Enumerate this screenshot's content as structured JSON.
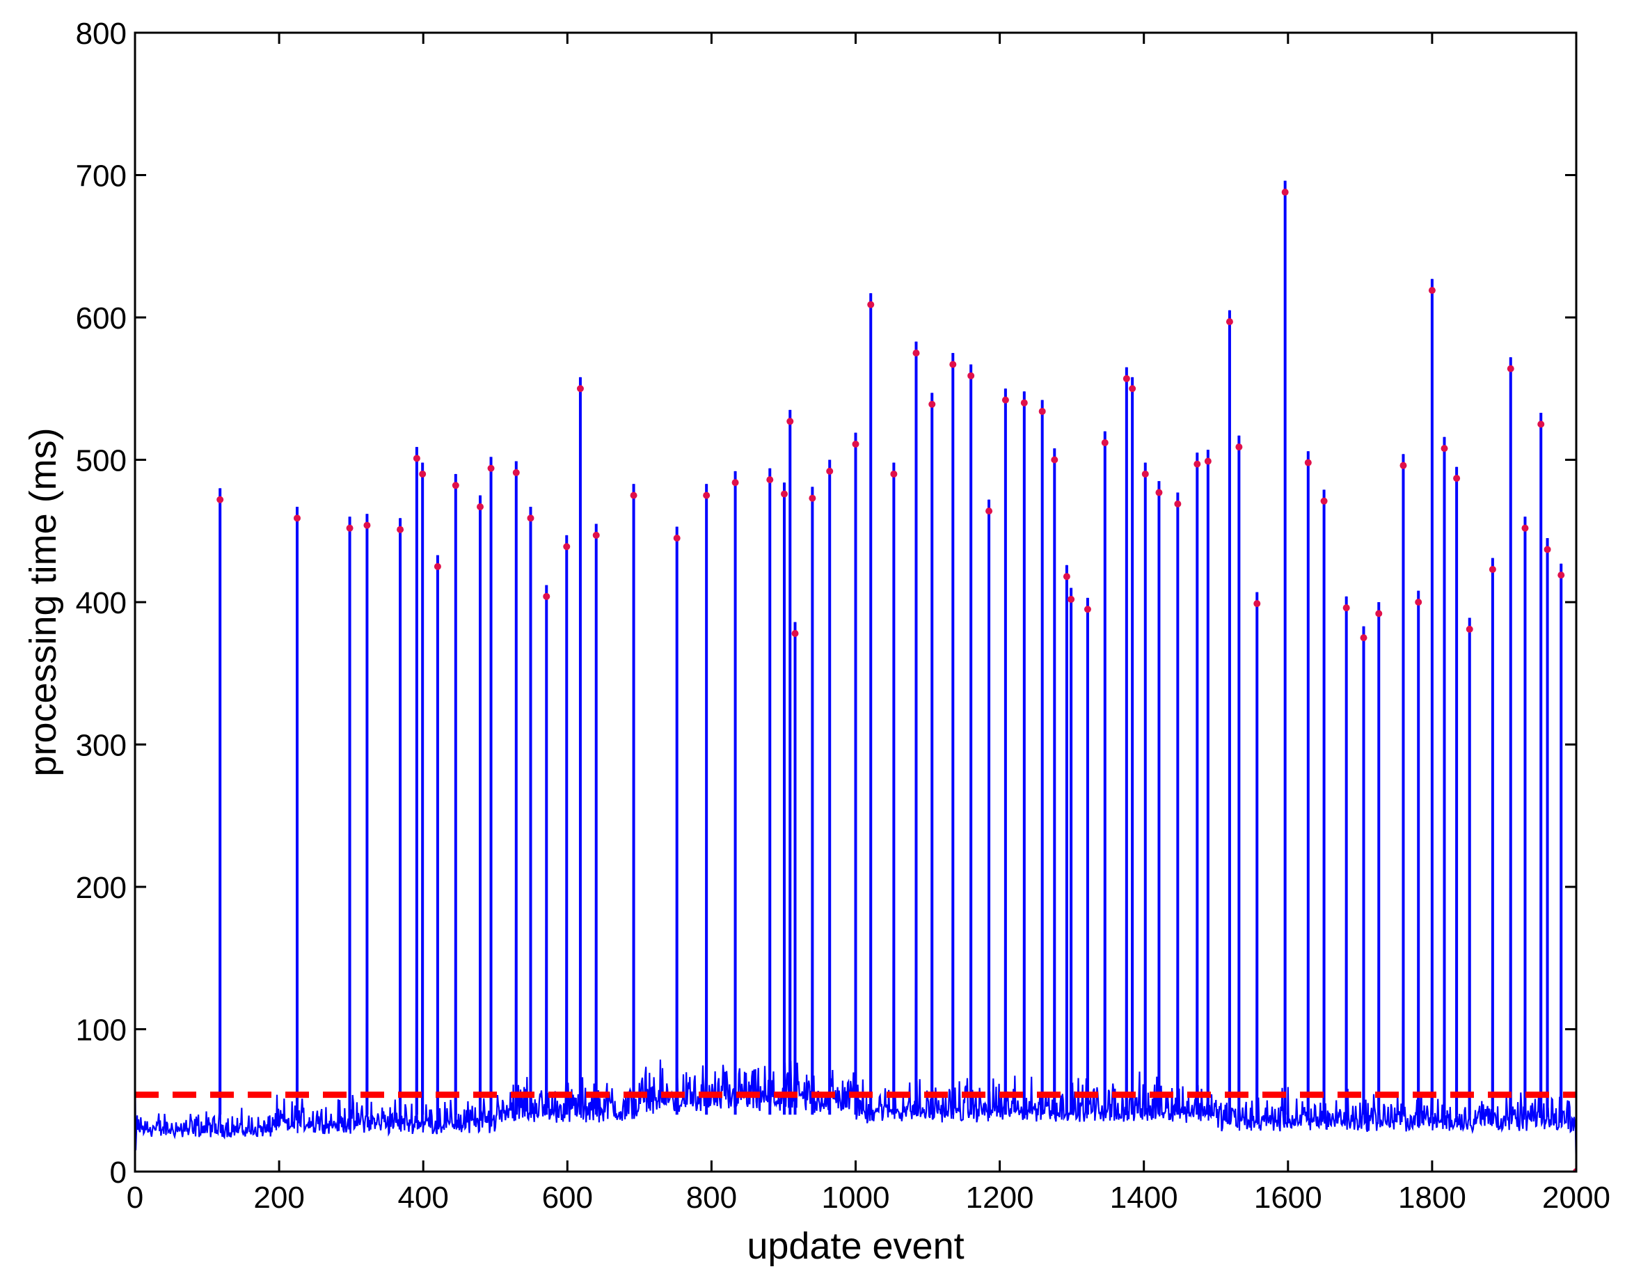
{
  "chart_data": {
    "type": "line",
    "title": "",
    "xlabel": "update event",
    "ylabel": "processing time (ms)",
    "xlim": [
      0,
      2000
    ],
    "ylim": [
      0,
      800
    ],
    "xticks": [
      0,
      200,
      400,
      600,
      800,
      1000,
      1200,
      1400,
      1600,
      1800,
      2000
    ],
    "yticks": [
      0,
      100,
      200,
      300,
      400,
      500,
      600,
      700,
      800
    ],
    "grid": false,
    "legend": "none",
    "series": [
      {
        "kind": "line",
        "color": "#0000ff",
        "description_of_baseline": "noisy processing-time trace between ~15 and ~80 ms",
        "baseline_segments": [
          {
            "x_start": 0,
            "x_end": 190,
            "min": 15,
            "max": 45
          },
          {
            "x_start": 190,
            "x_end": 500,
            "min": 15,
            "max": 55
          },
          {
            "x_start": 500,
            "x_end": 700,
            "min": 20,
            "max": 70
          },
          {
            "x_start": 700,
            "x_end": 1000,
            "min": 25,
            "max": 80
          },
          {
            "x_start": 1000,
            "x_end": 1500,
            "min": 20,
            "max": 70
          },
          {
            "x_start": 1500,
            "x_end": 2000,
            "min": 15,
            "max": 60
          }
        ],
        "spikes": [
          {
            "x": 118,
            "y": 472
          },
          {
            "x": 225,
            "y": 459
          },
          {
            "x": 298,
            "y": 452
          },
          {
            "x": 322,
            "y": 454
          },
          {
            "x": 368,
            "y": 451
          },
          {
            "x": 391,
            "y": 501
          },
          {
            "x": 399,
            "y": 490
          },
          {
            "x": 420,
            "y": 425
          },
          {
            "x": 445,
            "y": 482
          },
          {
            "x": 479,
            "y": 467
          },
          {
            "x": 494,
            "y": 494
          },
          {
            "x": 529,
            "y": 491
          },
          {
            "x": 549,
            "y": 459
          },
          {
            "x": 571,
            "y": 404
          },
          {
            "x": 599,
            "y": 439
          },
          {
            "x": 618,
            "y": 550
          },
          {
            "x": 640,
            "y": 447
          },
          {
            "x": 692,
            "y": 475
          },
          {
            "x": 752,
            "y": 445
          },
          {
            "x": 793,
            "y": 475
          },
          {
            "x": 833,
            "y": 484
          },
          {
            "x": 881,
            "y": 486
          },
          {
            "x": 901,
            "y": 476
          },
          {
            "x": 909,
            "y": 527
          },
          {
            "x": 916,
            "y": 378
          },
          {
            "x": 940,
            "y": 473
          },
          {
            "x": 964,
            "y": 492
          },
          {
            "x": 1000,
            "y": 511
          },
          {
            "x": 1021,
            "y": 609
          },
          {
            "x": 1053,
            "y": 490
          },
          {
            "x": 1084,
            "y": 575
          },
          {
            "x": 1106,
            "y": 539
          },
          {
            "x": 1135,
            "y": 567
          },
          {
            "x": 1160,
            "y": 559
          },
          {
            "x": 1185,
            "y": 464
          },
          {
            "x": 1208,
            "y": 542
          },
          {
            "x": 1234,
            "y": 540
          },
          {
            "x": 1259,
            "y": 534
          },
          {
            "x": 1276,
            "y": 500
          },
          {
            "x": 1293,
            "y": 418
          },
          {
            "x": 1299,
            "y": 402
          },
          {
            "x": 1322,
            "y": 395
          },
          {
            "x": 1346,
            "y": 512
          },
          {
            "x": 1376,
            "y": 557
          },
          {
            "x": 1384,
            "y": 550
          },
          {
            "x": 1402,
            "y": 490
          },
          {
            "x": 1421,
            "y": 477
          },
          {
            "x": 1447,
            "y": 469
          },
          {
            "x": 1474,
            "y": 497
          },
          {
            "x": 1489,
            "y": 499
          },
          {
            "x": 1519,
            "y": 597
          },
          {
            "x": 1532,
            "y": 509
          },
          {
            "x": 1557,
            "y": 399
          },
          {
            "x": 1596,
            "y": 688
          },
          {
            "x": 1628,
            "y": 498
          },
          {
            "x": 1650,
            "y": 471
          },
          {
            "x": 1681,
            "y": 396
          },
          {
            "x": 1705,
            "y": 375
          },
          {
            "x": 1726,
            "y": 392
          },
          {
            "x": 1760,
            "y": 496
          },
          {
            "x": 1781,
            "y": 400
          },
          {
            "x": 1800,
            "y": 619
          },
          {
            "x": 1817,
            "y": 508
          },
          {
            "x": 1834,
            "y": 487
          },
          {
            "x": 1852,
            "y": 381
          },
          {
            "x": 1884,
            "y": 423
          },
          {
            "x": 1909,
            "y": 564
          },
          {
            "x": 1929,
            "y": 452
          },
          {
            "x": 1951,
            "y": 525
          },
          {
            "x": 1960,
            "y": 437
          },
          {
            "x": 1979,
            "y": 419
          }
        ]
      },
      {
        "kind": "threshold",
        "color": "#ff0000",
        "style": "dashed",
        "y": 54
      },
      {
        "kind": "markers",
        "color": "#e0104a",
        "marker": "dot",
        "points_match": "spike peaks"
      }
    ]
  }
}
